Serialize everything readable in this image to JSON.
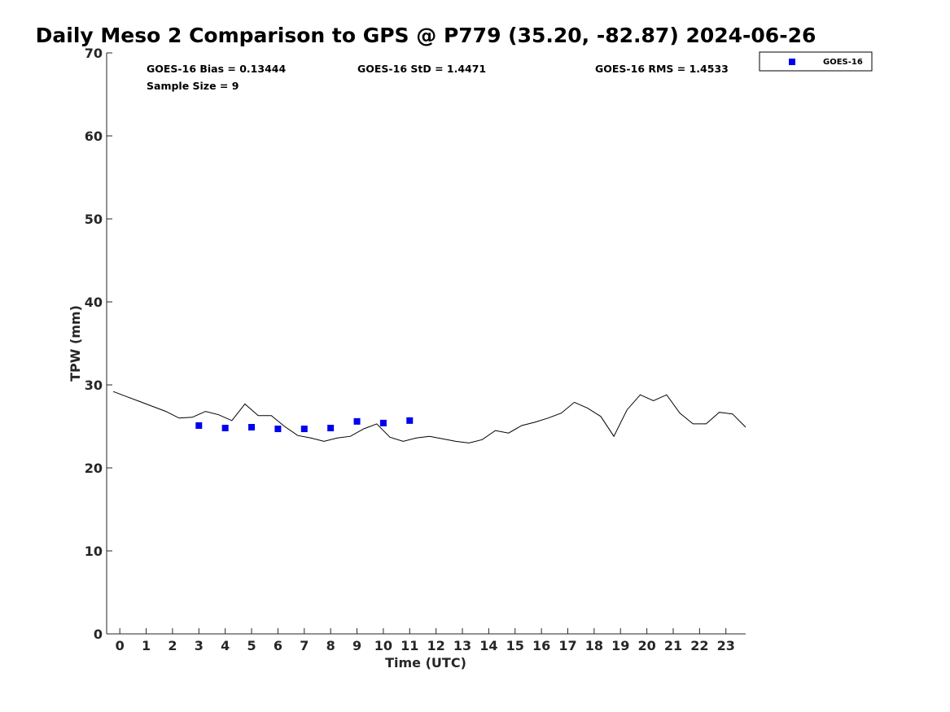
{
  "chart_data": {
    "type": "scatter",
    "title": "Daily Meso 2 Comparison to GPS @ P779 (35.20, -82.87) 2024-06-26",
    "xlabel": "Time (UTC)",
    "ylabel": "TPW (mm)",
    "xlim": [
      -0.5,
      23.75
    ],
    "ylim": [
      0,
      70
    ],
    "x_ticks": [
      0,
      1,
      2,
      3,
      4,
      5,
      6,
      7,
      8,
      9,
      10,
      11,
      12,
      13,
      14,
      15,
      16,
      17,
      18,
      19,
      20,
      21,
      22,
      23
    ],
    "y_ticks": [
      0,
      10,
      20,
      30,
      40,
      50,
      60,
      70
    ],
    "grid": false,
    "legend_position": "top-right, outside plot",
    "stats": {
      "bias": "GOES-16 Bias = 0.13444",
      "std": "GOES-16 StD = 1.4471",
      "rms": "GOES-16 RMS = 1.4533",
      "sample": "Sample Size = 9"
    },
    "series": [
      {
        "name": "GOES-16",
        "type": "scatter",
        "color": "#0000ee",
        "marker": "square",
        "x": [
          3,
          4,
          5,
          6,
          7,
          8,
          9,
          10,
          11
        ],
        "y": [
          25.1,
          24.8,
          24.9,
          24.7,
          24.7,
          24.8,
          25.6,
          25.4,
          25.7
        ]
      },
      {
        "type": "line",
        "color": "#000000",
        "x": [
          -0.25,
          0.25,
          0.75,
          1.25,
          1.75,
          2.25,
          2.75,
          3.25,
          3.75,
          4.25,
          4.75,
          5.25,
          5.75,
          6.25,
          6.75,
          7.25,
          7.75,
          8.25,
          8.75,
          9.25,
          9.75,
          10.25,
          10.75,
          11.25,
          11.75,
          12.25,
          12.75,
          13.25,
          13.75,
          14.25,
          14.75,
          15.25,
          15.75,
          16.25,
          16.75,
          17.25,
          17.75,
          18.25,
          18.75,
          19.25,
          19.75,
          20.25,
          20.75,
          21.25,
          21.75,
          22.25,
          22.75,
          23.25,
          23.75
        ],
        "y": [
          29.2,
          28.6,
          28.0,
          27.4,
          26.8,
          26.0,
          26.1,
          26.8,
          26.4,
          25.7,
          27.7,
          26.3,
          26.3,
          25.0,
          23.9,
          23.6,
          23.2,
          23.6,
          23.8,
          24.7,
          25.3,
          23.7,
          23.2,
          23.6,
          23.8,
          23.5,
          23.2,
          23.0,
          23.4,
          24.5,
          24.2,
          25.1,
          25.5,
          26.0,
          26.6,
          27.9,
          27.2,
          26.2,
          23.8,
          27.0,
          28.8,
          28.1,
          28.8,
          26.6,
          25.3,
          25.3,
          26.7,
          26.5,
          24.9
        ]
      }
    ]
  }
}
